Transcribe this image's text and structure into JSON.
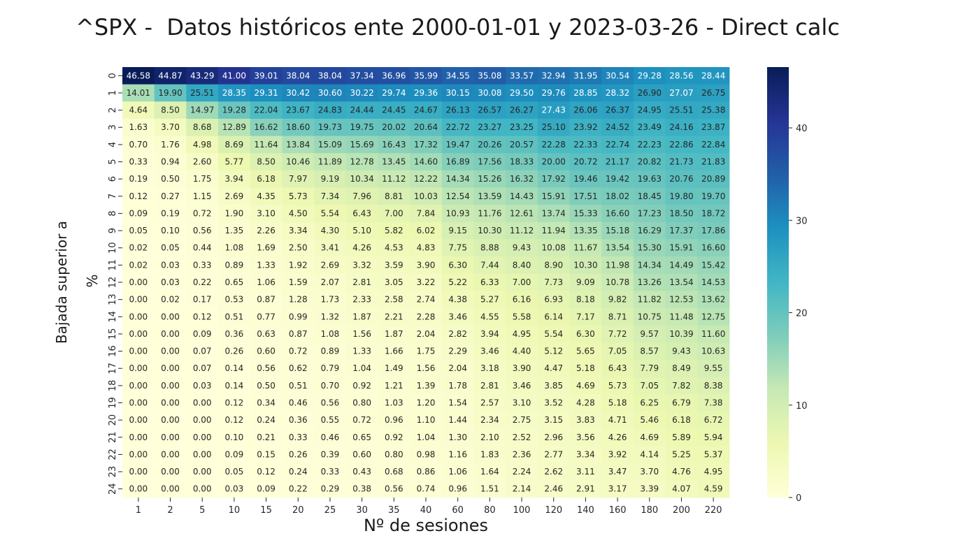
{
  "title": "^SPX -  Datos históricos ente 2000-01-01 y 2023-03-26 - Direct calc",
  "chart_data": {
    "type": "heatmap",
    "title": "^SPX -  Datos históricos ente 2000-01-01 y 2023-03-26 - Direct calc",
    "xlabel": "Nº de sesiones",
    "ylabel_line1": "Bajada superior a",
    "ylabel_line2": "%",
    "colormap": "YlGnBu",
    "vmin": 0,
    "vmax": 46.58,
    "colorbar_ticks": [
      0,
      10,
      20,
      30,
      40
    ],
    "x": [
      "1",
      "2",
      "5",
      "10",
      "15",
      "20",
      "25",
      "30",
      "35",
      "40",
      "60",
      "80",
      "100",
      "120",
      "140",
      "160",
      "180",
      "200",
      "220"
    ],
    "y": [
      "0",
      "1",
      "2",
      "3",
      "4",
      "5",
      "6",
      "7",
      "8",
      "9",
      "10",
      "11",
      "12",
      "13",
      "14",
      "15",
      "16",
      "17",
      "18",
      "19",
      "20",
      "21",
      "22",
      "23",
      "24"
    ],
    "values": [
      [
        46.58,
        44.87,
        43.29,
        41.0,
        39.01,
        38.04,
        38.04,
        37.34,
        36.96,
        35.99,
        34.55,
        35.08,
        33.57,
        32.94,
        31.95,
        30.54,
        29.28,
        28.56,
        28.44
      ],
      [
        14.01,
        19.9,
        25.51,
        28.35,
        29.31,
        30.42,
        30.6,
        30.22,
        29.74,
        29.36,
        30.15,
        30.08,
        29.5,
        29.76,
        28.85,
        28.32,
        26.9,
        27.07,
        26.75
      ],
      [
        4.64,
        8.5,
        14.97,
        19.28,
        22.04,
        23.67,
        24.83,
        24.44,
        24.45,
        24.67,
        26.13,
        26.57,
        26.27,
        27.43,
        26.06,
        26.37,
        24.95,
        25.51,
        25.38
      ],
      [
        1.63,
        3.7,
        8.68,
        12.89,
        16.62,
        18.6,
        19.73,
        19.75,
        20.02,
        20.64,
        22.72,
        23.27,
        23.25,
        25.1,
        23.92,
        24.52,
        23.49,
        24.16,
        23.87
      ],
      [
        0.7,
        1.76,
        4.98,
        8.69,
        11.64,
        13.84,
        15.09,
        15.69,
        16.43,
        17.32,
        19.47,
        20.26,
        20.57,
        22.28,
        22.33,
        22.74,
        22.23,
        22.86,
        22.84
      ],
      [
        0.33,
        0.94,
        2.6,
        5.77,
        8.5,
        10.46,
        11.89,
        12.78,
        13.45,
        14.6,
        16.89,
        17.56,
        18.33,
        20.0,
        20.72,
        21.17,
        20.82,
        21.73,
        21.83
      ],
      [
        0.19,
        0.5,
        1.75,
        3.94,
        6.18,
        7.97,
        9.19,
        10.34,
        11.12,
        12.22,
        14.34,
        15.26,
        16.32,
        17.92,
        19.46,
        19.42,
        19.63,
        20.76,
        20.89
      ],
      [
        0.12,
        0.27,
        1.15,
        2.69,
        4.35,
        5.73,
        7.34,
        7.96,
        8.81,
        10.03,
        12.54,
        13.59,
        14.43,
        15.91,
        17.51,
        18.02,
        18.45,
        19.8,
        19.7
      ],
      [
        0.09,
        0.19,
        0.72,
        1.9,
        3.1,
        4.5,
        5.54,
        6.43,
        7.0,
        7.84,
        10.93,
        11.76,
        12.61,
        13.74,
        15.33,
        16.6,
        17.23,
        18.5,
        18.72
      ],
      [
        0.05,
        0.1,
        0.56,
        1.35,
        2.26,
        3.34,
        4.3,
        5.1,
        5.82,
        6.02,
        9.15,
        10.3,
        11.12,
        11.94,
        13.35,
        15.18,
        16.29,
        17.37,
        17.86
      ],
      [
        0.02,
        0.05,
        0.44,
        1.08,
        1.69,
        2.5,
        3.41,
        4.26,
        4.53,
        4.83,
        7.75,
        8.88,
        9.43,
        10.08,
        11.67,
        13.54,
        15.3,
        15.91,
        16.6
      ],
      [
        0.02,
        0.03,
        0.33,
        0.89,
        1.33,
        1.92,
        2.69,
        3.32,
        3.59,
        3.9,
        6.3,
        7.44,
        8.4,
        8.9,
        10.3,
        11.98,
        14.34,
        14.49,
        15.42
      ],
      [
        0.0,
        0.03,
        0.22,
        0.65,
        1.06,
        1.59,
        2.07,
        2.81,
        3.05,
        3.22,
        5.22,
        6.33,
        7.0,
        7.73,
        9.09,
        10.78,
        13.26,
        13.54,
        14.53
      ],
      [
        0.0,
        0.02,
        0.17,
        0.53,
        0.87,
        1.28,
        1.73,
        2.33,
        2.58,
        2.74,
        4.38,
        5.27,
        6.16,
        6.93,
        8.18,
        9.82,
        11.82,
        12.53,
        13.62
      ],
      [
        0.0,
        0.0,
        0.12,
        0.51,
        0.77,
        0.99,
        1.32,
        1.87,
        2.21,
        2.28,
        3.46,
        4.55,
        5.58,
        6.14,
        7.17,
        8.71,
        10.75,
        11.48,
        12.75
      ],
      [
        0.0,
        0.0,
        0.09,
        0.36,
        0.63,
        0.87,
        1.08,
        1.56,
        1.87,
        2.04,
        2.82,
        3.94,
        4.95,
        5.54,
        6.3,
        7.72,
        9.57,
        10.39,
        11.6
      ],
      [
        0.0,
        0.0,
        0.07,
        0.26,
        0.6,
        0.72,
        0.89,
        1.33,
        1.66,
        1.75,
        2.29,
        3.46,
        4.4,
        5.12,
        5.65,
        7.05,
        8.57,
        9.43,
        10.63
      ],
      [
        0.0,
        0.0,
        0.07,
        0.14,
        0.56,
        0.62,
        0.79,
        1.04,
        1.49,
        1.56,
        2.04,
        3.18,
        3.9,
        4.47,
        5.18,
        6.43,
        7.79,
        8.49,
        9.55
      ],
      [
        0.0,
        0.0,
        0.03,
        0.14,
        0.5,
        0.51,
        0.7,
        0.92,
        1.21,
        1.39,
        1.78,
        2.81,
        3.46,
        3.85,
        4.69,
        5.73,
        7.05,
        7.82,
        8.38
      ],
      [
        0.0,
        0.0,
        0.0,
        0.12,
        0.34,
        0.46,
        0.56,
        0.8,
        1.03,
        1.2,
        1.54,
        2.57,
        3.1,
        3.52,
        4.28,
        5.18,
        6.25,
        6.79,
        7.38
      ],
      [
        0.0,
        0.0,
        0.0,
        0.12,
        0.24,
        0.36,
        0.55,
        0.72,
        0.96,
        1.1,
        1.44,
        2.34,
        2.75,
        3.15,
        3.83,
        4.71,
        5.46,
        6.18,
        6.72
      ],
      [
        0.0,
        0.0,
        0.0,
        0.1,
        0.21,
        0.33,
        0.46,
        0.65,
        0.92,
        1.04,
        1.3,
        2.1,
        2.52,
        2.96,
        3.56,
        4.26,
        4.69,
        5.89,
        5.94
      ],
      [
        0.0,
        0.0,
        0.0,
        0.09,
        0.15,
        0.26,
        0.39,
        0.6,
        0.8,
        0.98,
        1.16,
        1.83,
        2.36,
        2.77,
        3.34,
        3.92,
        4.14,
        5.25,
        5.37
      ],
      [
        0.0,
        0.0,
        0.0,
        0.05,
        0.12,
        0.24,
        0.33,
        0.43,
        0.68,
        0.86,
        1.06,
        1.64,
        2.24,
        2.62,
        3.11,
        3.47,
        3.7,
        4.76,
        4.95
      ],
      [
        0.0,
        0.0,
        0.0,
        0.03,
        0.09,
        0.22,
        0.29,
        0.38,
        0.56,
        0.74,
        0.96,
        1.51,
        2.14,
        2.46,
        2.91,
        3.17,
        3.39,
        4.07,
        4.59
      ]
    ]
  }
}
